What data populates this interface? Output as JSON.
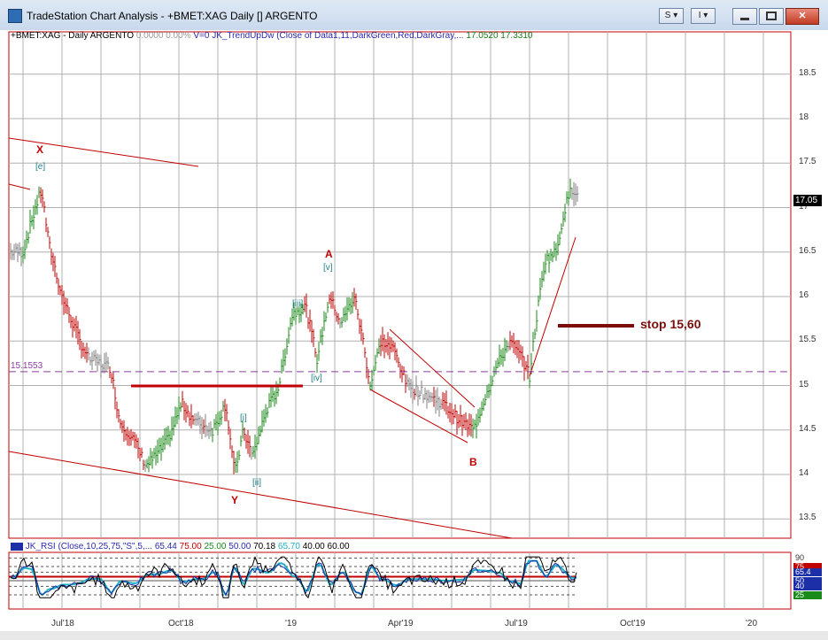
{
  "window": {
    "title": "TradeStation Chart Analysis - +BMET:XAG Daily [] ARGENTO"
  },
  "toolbar": {
    "s_label": "S ▾",
    "i_label": "I ▾",
    "close_label": "✕"
  },
  "header": {
    "symbol": "+BMET:XAG - Daily",
    "name": "ARGENTO",
    "change": "0.0000",
    "pct": "0.00%",
    "volume": "V=0",
    "indicator": "JK_TrendUpDw (Close of Data1,11,DarkGreen,Red,DarkGray,...",
    "val1": "17.0520",
    "val2": "17.3310"
  },
  "price_axis": [
    "18.5",
    "18",
    "17.5",
    "17",
    "16.5",
    "16",
    "15.5",
    "15",
    "14.5",
    "14",
    "13.5"
  ],
  "last_price": "17.05",
  "hline_label": "15.1553",
  "waves": {
    "X": "X",
    "A": "A",
    "B": "B",
    "Y": "Y"
  },
  "subwaves": {
    "e": "[e]",
    "v": "[v]",
    "iii": "[iii]",
    "iv": "[iv]",
    "i": "[i]",
    "ii": "[ii]"
  },
  "stop_text": "stop 15,60",
  "rsi": {
    "header": "JK_RSI (Close,10,25,75,\"S\",5,...",
    "v1": "65.44",
    "v2": "75.00",
    "v3": "25.00",
    "v4": "50.00",
    "v5": "70.18",
    "v6": "65.70",
    "v7": "40.00",
    "v8": "60.00",
    "axis": [
      "90",
      "75",
      "65.4",
      "50",
      "40",
      "25"
    ]
  },
  "x_axis": [
    "Jul'18",
    "Oct'18",
    "'19",
    "Apr'19",
    "Jul'19",
    "Oct'19",
    "'20"
  ],
  "colors": {
    "up": "#1a8a1a",
    "down": "#c00000",
    "neutral": "#808080",
    "trend": "#c00000",
    "stop": "#7b0d0d",
    "hline": "#8a3d9e"
  }
}
